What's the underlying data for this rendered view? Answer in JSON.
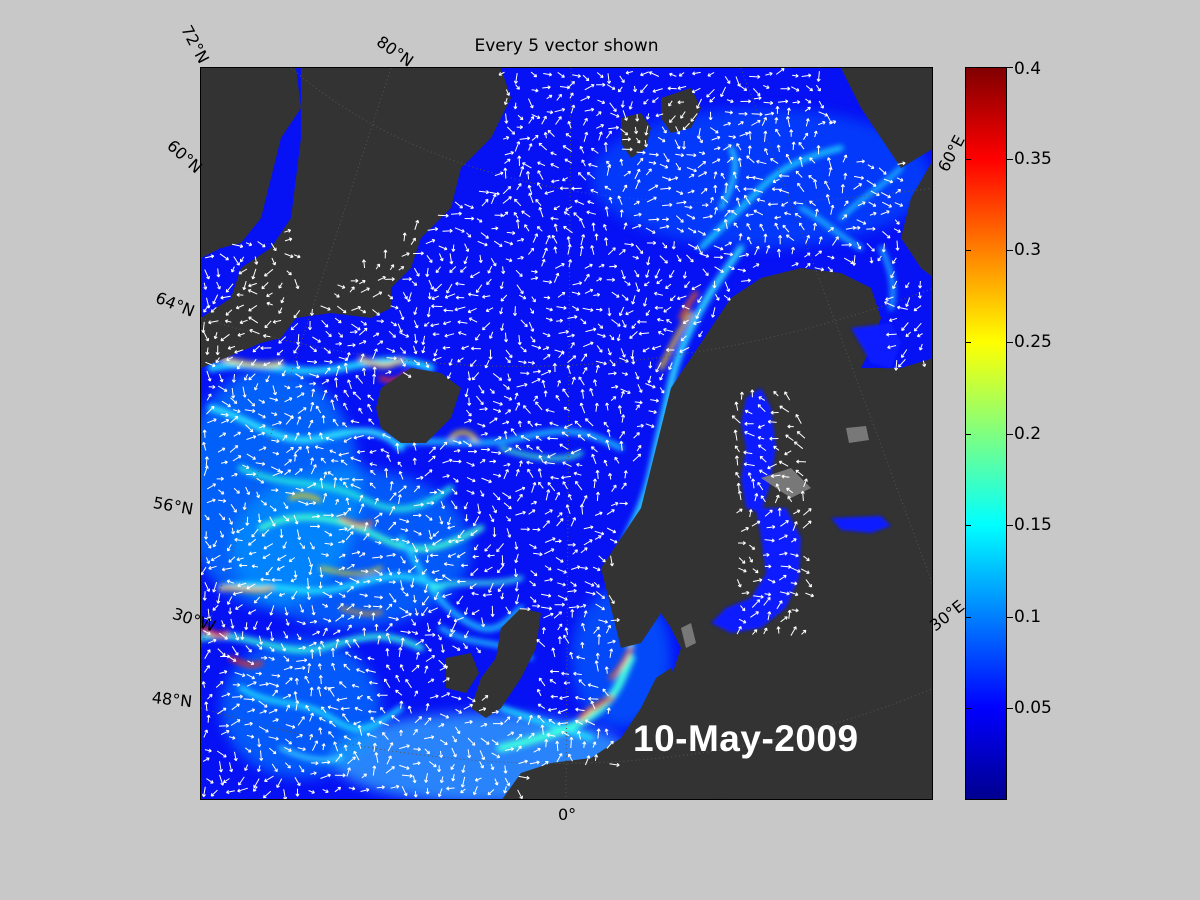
{
  "title": "Every 5 vector shown",
  "date": "10-May-2009",
  "lat_labels": {
    "lat72": "72°N",
    "lat80": "80°N",
    "lat60": "60°N",
    "lat64": "64°N",
    "lat56": "56°N",
    "lat48": "48°N"
  },
  "lon_labels": {
    "lon30w": "30°W",
    "lon0": "0°",
    "lon30e": "30°E",
    "lon60e": "60°E"
  },
  "colorbar": {
    "min": 0,
    "max": 0.4,
    "ticks": [
      "0.05",
      "0.1",
      "0.15",
      "0.2",
      "0.25",
      "0.3",
      "0.35",
      "0.4"
    ],
    "tick_values": [
      0.05,
      0.1,
      0.15,
      0.2,
      0.25,
      0.3,
      0.35,
      0.4
    ],
    "colormap": "jet"
  },
  "colors": {
    "background": "#c8c8c8",
    "land": "#333333",
    "ocean_base": "#0a1cff",
    "vectors": "#ffffff"
  }
}
